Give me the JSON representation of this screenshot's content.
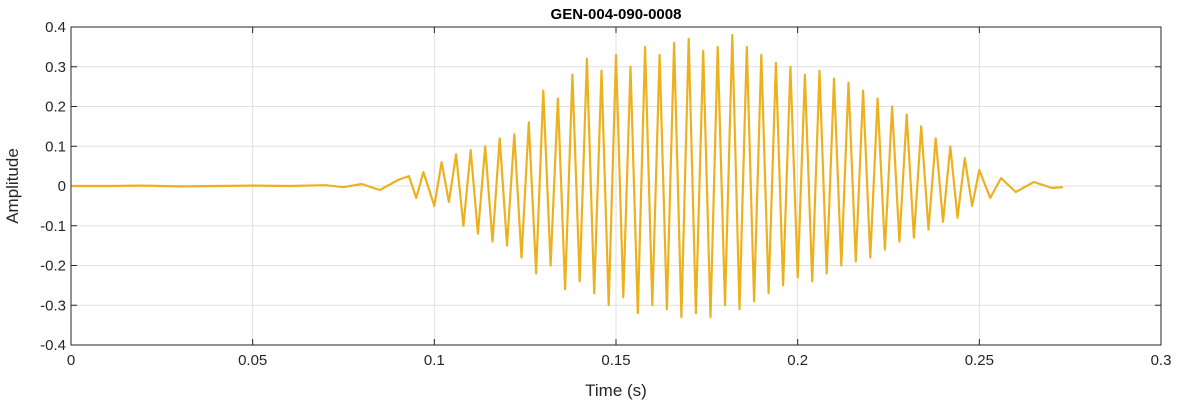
{
  "chart_data": {
    "type": "line",
    "title": "GEN-004-090-0008",
    "xlabel": "Time (s)",
    "ylabel": "Amplitude",
    "xlim": [
      0,
      0.3
    ],
    "ylim": [
      -0.4,
      0.4
    ],
    "xticks": [
      0,
      0.05,
      0.1,
      0.15,
      0.2,
      0.25,
      0.3
    ],
    "xtick_labels": [
      "0",
      "0.05",
      "0.1",
      "0.15",
      "0.2",
      "0.25",
      "0.3"
    ],
    "yticks": [
      -0.4,
      -0.3,
      -0.2,
      -0.1,
      0,
      0.1,
      0.2,
      0.3,
      0.4
    ],
    "ytick_labels": [
      "-0.4",
      "-0.3",
      "-0.2",
      "-0.1",
      "0",
      "0.1",
      "0.2",
      "0.3",
      "0.4"
    ],
    "grid": true,
    "line_color": "#EDB120",
    "series": [
      {
        "x": [
          0,
          0.01,
          0.02,
          0.03,
          0.04,
          0.05,
          0.06,
          0.07,
          0.075,
          0.08,
          0.085,
          0.09,
          0.093,
          0.095,
          0.097,
          0.1,
          0.102,
          0.104,
          0.106,
          0.108,
          0.11,
          0.112,
          0.114,
          0.116,
          0.118,
          0.12,
          0.122,
          0.124,
          0.126,
          0.128,
          0.13,
          0.132,
          0.134,
          0.136,
          0.138,
          0.14,
          0.142,
          0.144,
          0.146,
          0.148,
          0.15,
          0.152,
          0.154,
          0.156,
          0.158,
          0.16,
          0.162,
          0.164,
          0.166,
          0.168,
          0.17,
          0.172,
          0.174,
          0.176,
          0.178,
          0.18,
          0.182,
          0.184,
          0.186,
          0.188,
          0.19,
          0.192,
          0.194,
          0.196,
          0.198,
          0.2,
          0.202,
          0.204,
          0.206,
          0.208,
          0.21,
          0.212,
          0.214,
          0.216,
          0.218,
          0.22,
          0.222,
          0.224,
          0.226,
          0.228,
          0.23,
          0.232,
          0.234,
          0.236,
          0.238,
          0.24,
          0.242,
          0.244,
          0.246,
          0.248,
          0.25,
          0.253,
          0.256,
          0.26,
          0.265,
          0.27,
          0.273
        ],
        "y": [
          0,
          0,
          0.001,
          -0.001,
          0,
          0.001,
          0,
          0.002,
          -0.003,
          0.005,
          -0.01,
          0.015,
          0.025,
          -0.03,
          0.035,
          -0.05,
          0.06,
          -0.04,
          0.08,
          -0.1,
          0.09,
          -0.12,
          0.1,
          -0.14,
          0.12,
          -0.15,
          0.13,
          -0.18,
          0.16,
          -0.22,
          0.24,
          -0.2,
          0.22,
          -0.26,
          0.28,
          -0.24,
          0.32,
          -0.27,
          0.29,
          -0.3,
          0.33,
          -0.28,
          0.3,
          -0.32,
          0.35,
          -0.3,
          0.33,
          -0.31,
          0.36,
          -0.33,
          0.37,
          -0.32,
          0.34,
          -0.33,
          0.35,
          -0.3,
          0.38,
          -0.31,
          0.35,
          -0.29,
          0.33,
          -0.27,
          0.31,
          -0.25,
          0.3,
          -0.23,
          0.28,
          -0.24,
          0.29,
          -0.22,
          0.27,
          -0.2,
          0.26,
          -0.19,
          0.24,
          -0.18,
          0.22,
          -0.16,
          0.2,
          -0.14,
          0.18,
          -0.13,
          0.15,
          -0.11,
          0.12,
          -0.09,
          0.1,
          -0.08,
          0.07,
          -0.05,
          0.04,
          -0.03,
          0.02,
          -0.015,
          0.01,
          -0.005,
          -0.003
        ]
      }
    ]
  }
}
